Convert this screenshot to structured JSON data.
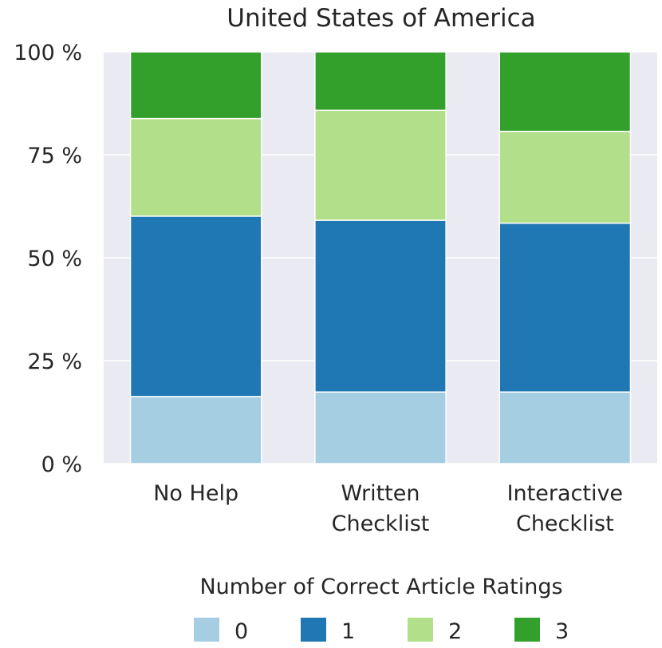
{
  "chart_data": {
    "type": "bar",
    "stacked": true,
    "title": "United States of America",
    "categories": [
      [
        "No Help"
      ],
      [
        "Written",
        "Checklist"
      ],
      [
        "Interactive",
        "Checklist"
      ]
    ],
    "yticks": [
      "0 %",
      "25 %",
      "50 %",
      "75 %",
      "100 %"
    ],
    "ylim": [
      0,
      100
    ],
    "grid": true,
    "legend_title": "Number of Correct Article Ratings",
    "legend_position": "bottom",
    "series": [
      {
        "name": "0",
        "color": "#a6cee3",
        "values": [
          16.3,
          17.4,
          17.4
        ]
      },
      {
        "name": "1",
        "color": "#1f78b4",
        "values": [
          43.8,
          41.7,
          41.0
        ]
      },
      {
        "name": "2",
        "color": "#b2df8a",
        "values": [
          23.7,
          26.7,
          22.3
        ]
      },
      {
        "name": "3",
        "color": "#33a02c",
        "values": [
          16.2,
          14.2,
          19.3
        ]
      }
    ],
    "colors": {
      "plot_background": "#eaeaf2",
      "grid": "#ffffff"
    }
  }
}
